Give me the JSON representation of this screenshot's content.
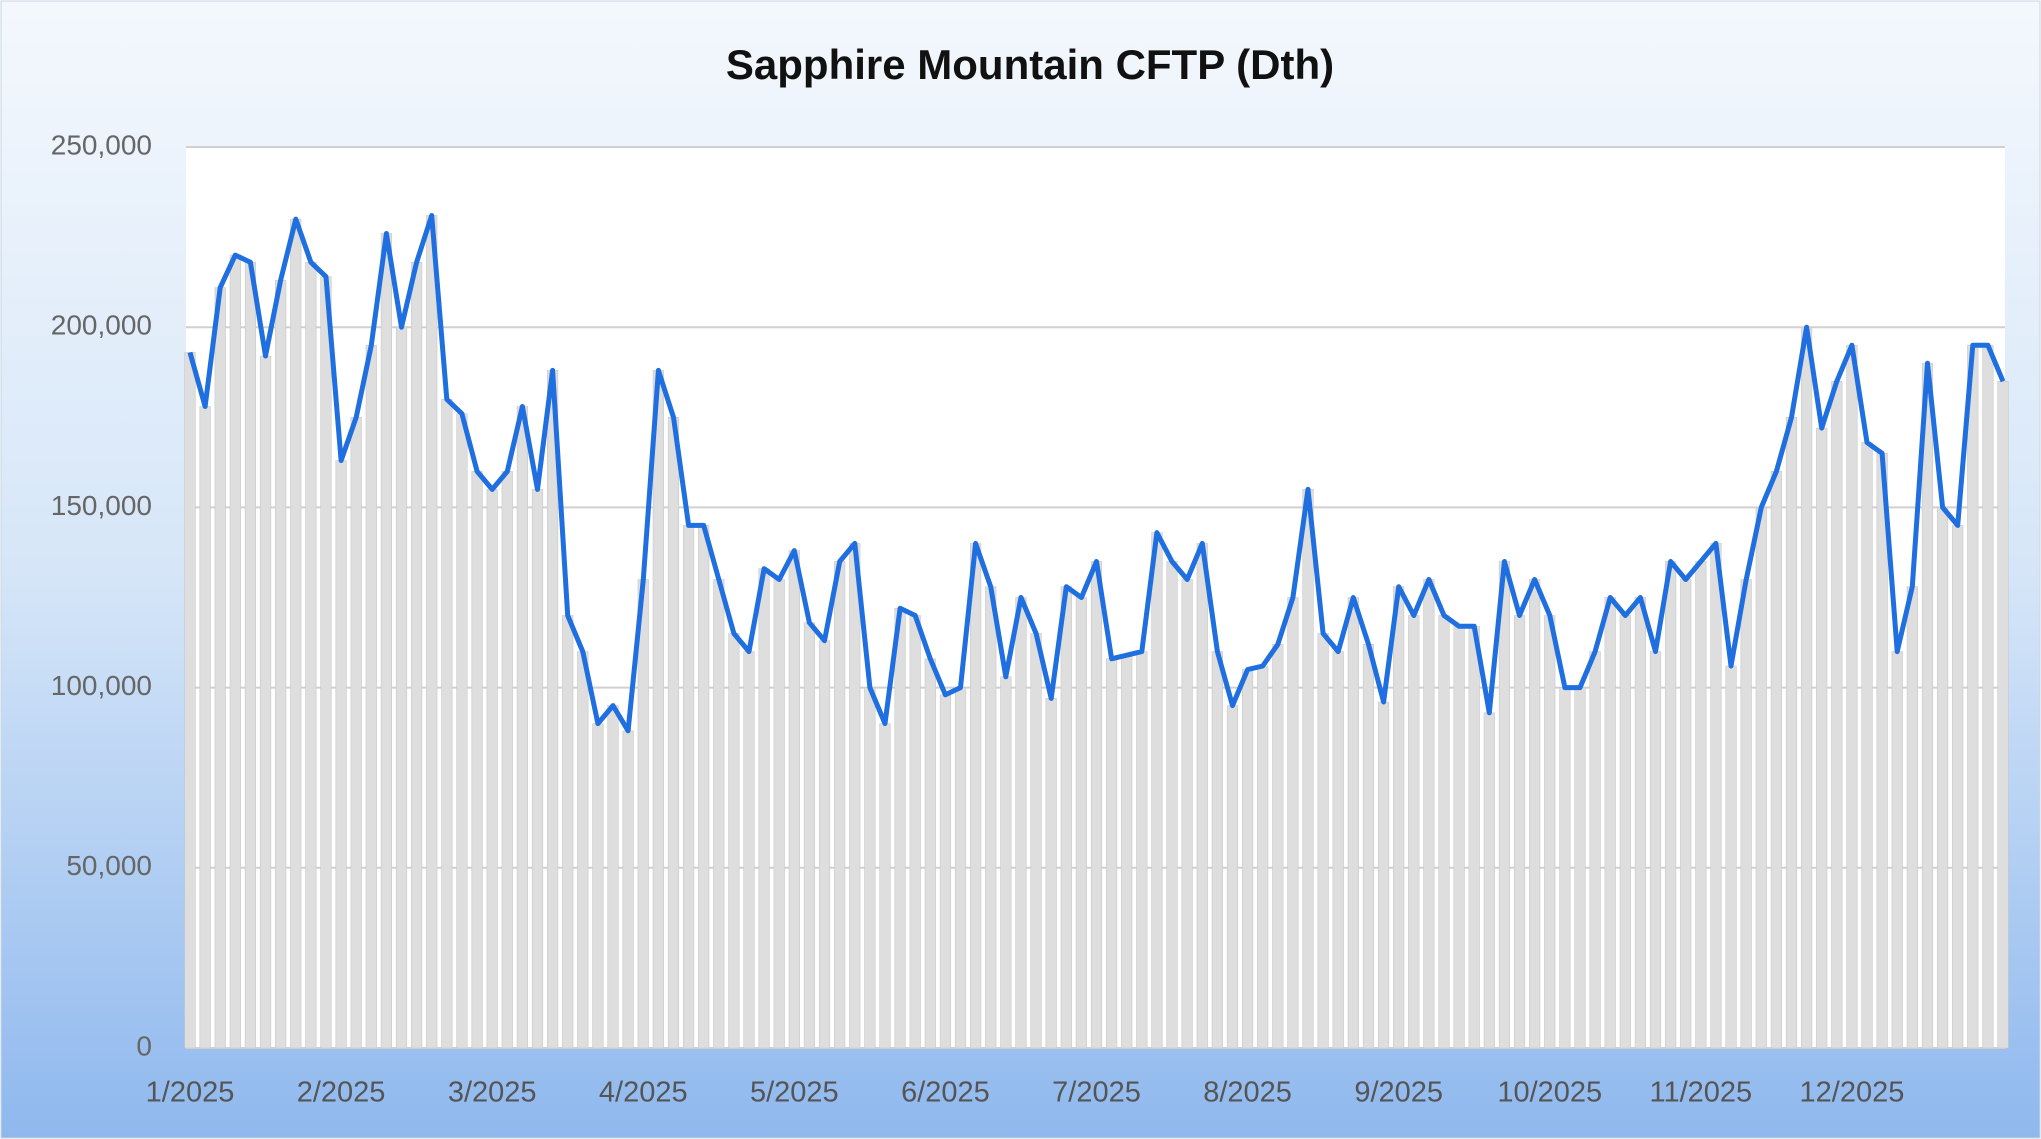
{
  "chart_data": {
    "type": "line",
    "title": "Sapphire Mountain CFTP (Dth)",
    "categories": [
      "1/2025",
      null,
      null,
      null,
      null,
      null,
      null,
      null,
      null,
      null,
      "2/2025",
      null,
      null,
      null,
      null,
      null,
      null,
      null,
      null,
      null,
      "3/2025",
      null,
      null,
      null,
      null,
      null,
      null,
      null,
      null,
      null,
      "4/2025",
      null,
      null,
      null,
      null,
      null,
      null,
      null,
      null,
      null,
      "5/2025",
      null,
      null,
      null,
      null,
      null,
      null,
      null,
      null,
      null,
      "6/2025",
      null,
      null,
      null,
      null,
      null,
      null,
      null,
      null,
      null,
      "7/2025",
      null,
      null,
      null,
      null,
      null,
      null,
      null,
      null,
      null,
      "8/2025",
      null,
      null,
      null,
      null,
      null,
      null,
      null,
      null,
      null,
      "9/2025",
      null,
      null,
      null,
      null,
      null,
      null,
      null,
      null,
      null,
      "10/2025",
      null,
      null,
      null,
      null,
      null,
      null,
      null,
      null,
      null,
      "11/2025",
      null,
      null,
      null,
      null,
      null,
      null,
      null,
      null,
      null,
      "12/2025",
      null,
      null,
      null,
      null,
      null,
      null,
      null,
      null,
      null,
      null
    ],
    "series": [
      {
        "name": "CFTP",
        "color": "#1f6fe0",
        "values": [
          193000,
          178000,
          211000,
          220000,
          218000,
          192000,
          213000,
          230000,
          218000,
          214000,
          163000,
          175000,
          195000,
          226000,
          200000,
          218000,
          231000,
          180000,
          176000,
          160000,
          155000,
          160000,
          178000,
          155000,
          188000,
          120000,
          110000,
          90000,
          95000,
          88000,
          130000,
          188000,
          175000,
          145000,
          145000,
          130000,
          115000,
          110000,
          133000,
          130000,
          138000,
          118000,
          113000,
          135000,
          140000,
          100000,
          90000,
          122000,
          120000,
          108000,
          98000,
          100000,
          140000,
          128000,
          103000,
          125000,
          115000,
          97000,
          128000,
          125000,
          135000,
          108000,
          109000,
          110000,
          143000,
          135000,
          130000,
          140000,
          110000,
          95000,
          105000,
          106000,
          112000,
          125000,
          155000,
          115000,
          110000,
          125000,
          112000,
          96000,
          128000,
          120000,
          130000,
          120000,
          117000,
          117000,
          93000,
          135000,
          120000,
          130000,
          120000,
          100000,
          100000,
          110000,
          125000,
          120000,
          125000,
          110000,
          135000,
          130000,
          135000,
          140000,
          106000,
          130000,
          150000,
          160000,
          175000,
          200000,
          172000,
          185000,
          195000,
          168000,
          165000,
          110000,
          128000,
          190000,
          150000,
          145000,
          195000,
          195000,
          185000
        ]
      }
    ],
    "ylim": [
      0,
      250000
    ],
    "yticks": [
      0,
      {
        "value": 50000,
        "label": "50,000"
      },
      {
        "value": 100000,
        "label": "100,000"
      },
      {
        "value": 150000,
        "label": "150,000"
      },
      {
        "value": 200000,
        "label": "200,000"
      },
      {
        "value": 250000,
        "label": "250,000"
      }
    ],
    "grid": true
  }
}
